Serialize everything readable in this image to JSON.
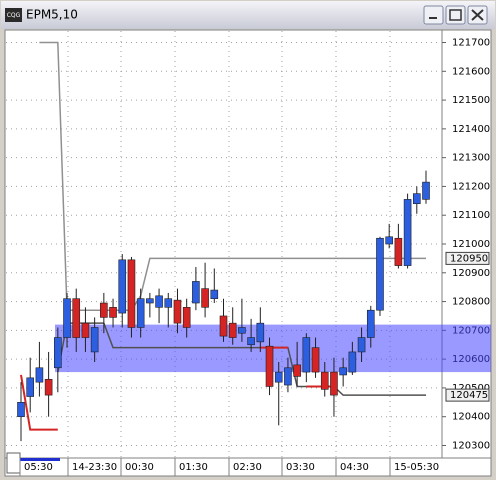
{
  "chart_data": {
    "type": "candlestick",
    "title": "EPM5,10",
    "icon_text": "CQG",
    "ylim": [
      120260,
      121740
    ],
    "yticks": [
      121700,
      121600,
      121500,
      121400,
      121300,
      121200,
      121100,
      121000,
      120900,
      120800,
      120700,
      120600,
      120500,
      120400,
      120300
    ],
    "grid": true,
    "xlabels": [
      "05:30",
      "14-23:30",
      "00:30",
      "01:30",
      "02:30",
      "03:30",
      "04:30",
      "15-05:30"
    ],
    "up_color": "#2c5ee0",
    "down_color": "#d42424",
    "open": [
      120400,
      120470,
      120520,
      120530,
      120570,
      120675,
      120810,
      120725,
      120625,
      120795,
      120780,
      120760,
      120945,
      120710,
      120795,
      120780,
      120780,
      120805,
      120780,
      120795,
      120845,
      120810,
      120750,
      120725,
      120690,
      120650,
      120660,
      120645,
      120520,
      120510,
      120580,
      120555,
      120640,
      120555,
      120555,
      120545,
      120555,
      120625,
      120675,
      120770,
      121000,
      121020,
      120925,
      121140,
      121155
    ],
    "high": [
      120520,
      120605,
      120660,
      120625,
      120710,
      120830,
      120845,
      120780,
      120745,
      120830,
      120810,
      120965,
      120955,
      120845,
      120830,
      120845,
      120830,
      120845,
      120810,
      120920,
      120935,
      120915,
      120810,
      120780,
      120810,
      120740,
      120780,
      120675,
      120590,
      120605,
      120660,
      120690,
      120675,
      120590,
      120605,
      120605,
      120660,
      120710,
      120785,
      121025,
      121070,
      121070,
      121175,
      121200,
      121255
    ],
    "low": [
      120315,
      120415,
      120470,
      120400,
      120485,
      120640,
      120625,
      120625,
      120590,
      120690,
      120710,
      120710,
      120675,
      120675,
      120745,
      120725,
      120710,
      120690,
      120675,
      120770,
      120745,
      120795,
      120660,
      120650,
      120660,
      120625,
      120625,
      120475,
      120370,
      120485,
      120505,
      120520,
      120535,
      120470,
      120400,
      120505,
      120545,
      120590,
      120640,
      120750,
      120985,
      120915,
      120915,
      121105,
      121140
    ],
    "close": [
      120450,
      120535,
      120570,
      120475,
      120675,
      120810,
      120675,
      120675,
      120710,
      120745,
      120745,
      120945,
      120710,
      120810,
      120810,
      120820,
      120810,
      120725,
      120710,
      120870,
      120780,
      120840,
      120680,
      120675,
      120710,
      120675,
      120725,
      120505,
      120555,
      120570,
      120540,
      120675,
      120555,
      120495,
      120475,
      120570,
      120625,
      120675,
      120770,
      121020,
      121025,
      120925,
      121155,
      121175,
      121215
    ],
    "lines": [
      {
        "color": "#909090",
        "values": [
          null,
          null,
          121700,
          121700,
          121700,
          120770,
          120770,
          120770,
          120770,
          120770,
          120770,
          120770,
          120770,
          120820,
          120950,
          120950,
          120950,
          120950,
          120950,
          120950,
          120950,
          120950,
          120950,
          120950,
          120950,
          120950,
          120950,
          120950,
          120950,
          120950,
          120950,
          120950,
          120950,
          120950,
          120950,
          120950,
          120950,
          120950,
          120950,
          120950,
          120950,
          120950,
          120950,
          120950,
          120950
        ]
      },
      {
        "color": "#505050",
        "values": [
          null,
          null,
          null,
          null,
          120555,
          120725,
          120725,
          120725,
          120725,
          120725,
          120640,
          120640,
          120640,
          120640,
          120640,
          120640,
          120640,
          120640,
          120640,
          120640,
          120640,
          120640,
          120640,
          120640,
          120640,
          120640,
          120640,
          120640,
          120640,
          120640,
          120505,
          120505,
          120505,
          120505,
          120505,
          120475,
          120475,
          120475,
          120475,
          120475,
          120475,
          120475,
          120475,
          120475,
          120475
        ]
      },
      {
        "color": "#d42424",
        "values": [
          120545,
          120355,
          120355,
          120355,
          120355,
          null,
          null,
          null,
          null,
          null,
          null,
          null,
          null,
          null,
          null,
          null,
          null,
          null,
          null,
          null,
          null,
          null,
          null,
          null,
          null,
          null,
          120640,
          120640,
          120640,
          120640,
          null,
          120505,
          120505,
          120505,
          120505,
          null,
          null,
          null,
          null,
          null,
          null,
          null,
          null,
          null,
          null
        ]
      }
    ],
    "band": {
      "from": 120555,
      "to": 120720,
      "color": "rgba(70,70,255,0.55)"
    },
    "price_markers": [
      120950,
      120475
    ]
  }
}
